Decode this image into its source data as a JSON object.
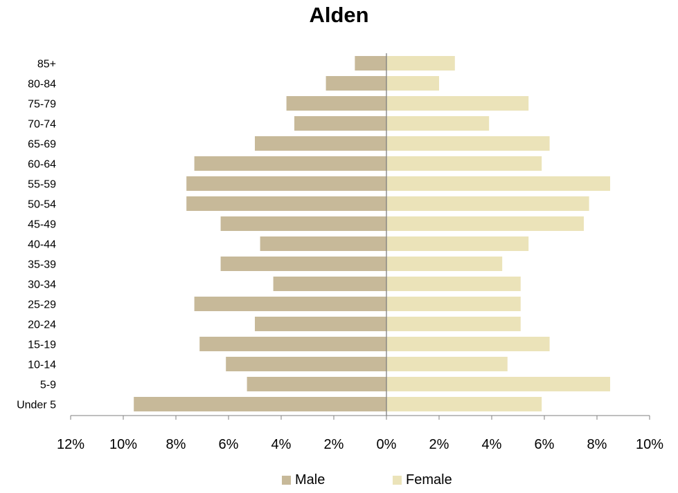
{
  "chart_data": {
    "type": "bar",
    "orientation": "horizontal-population-pyramid",
    "title": "Alden",
    "categories": [
      "Under 5",
      "5-9",
      "10-14",
      "15-19",
      "20-24",
      "25-29",
      "30-34",
      "35-39",
      "40-44",
      "45-49",
      "50-54",
      "55-59",
      "60-64",
      "65-69",
      "70-74",
      "75-79",
      "80-84",
      "85+"
    ],
    "series": [
      {
        "name": "Male",
        "color": "#c7b999",
        "values": [
          9.6,
          5.3,
          6.1,
          7.1,
          5.0,
          7.3,
          4.3,
          6.3,
          4.8,
          6.3,
          7.6,
          7.6,
          7.3,
          5.0,
          3.5,
          3.8,
          2.3,
          1.2
        ]
      },
      {
        "name": "Female",
        "color": "#ebe3b9",
        "values": [
          5.9,
          8.5,
          4.6,
          6.2,
          5.1,
          5.1,
          5.1,
          4.4,
          5.4,
          7.5,
          7.7,
          8.5,
          5.9,
          6.2,
          3.9,
          5.4,
          2.0,
          2.6
        ]
      }
    ],
    "xlim": [
      -12,
      10
    ],
    "xticks": [
      "12%",
      "10%",
      "8%",
      "6%",
      "4%",
      "2%",
      "0%",
      "2%",
      "4%",
      "6%",
      "8%",
      "10%"
    ],
    "legend_position": "bottom",
    "grid": false
  }
}
